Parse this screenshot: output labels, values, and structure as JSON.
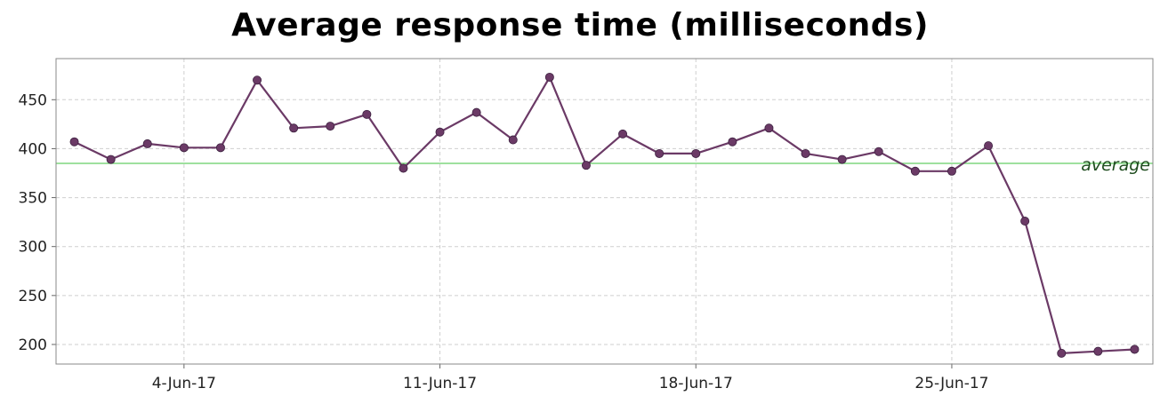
{
  "chart_data": {
    "type": "line",
    "title": "Average response time (milliseconds)",
    "xlabel": "",
    "ylabel": "",
    "x": [
      "1-Jun-17",
      "2-Jun-17",
      "3-Jun-17",
      "4-Jun-17",
      "5-Jun-17",
      "6-Jun-17",
      "7-Jun-17",
      "8-Jun-17",
      "9-Jun-17",
      "10-Jun-17",
      "11-Jun-17",
      "12-Jun-17",
      "13-Jun-17",
      "14-Jun-17",
      "15-Jun-17",
      "16-Jun-17",
      "17-Jun-17",
      "18-Jun-17",
      "19-Jun-17",
      "20-Jun-17",
      "21-Jun-17",
      "22-Jun-17",
      "23-Jun-17",
      "24-Jun-17",
      "25-Jun-17",
      "26-Jun-17",
      "27-Jun-17",
      "28-Jun-17",
      "29-Jun-17",
      "30-Jun-17"
    ],
    "series": [
      {
        "name": "",
        "values": [
          407,
          389,
          405,
          401,
          401,
          470,
          421,
          423,
          435,
          380,
          417,
          437,
          409,
          473,
          383,
          415,
          395,
          395,
          407,
          421,
          395,
          389,
          397,
          377,
          377,
          403,
          326,
          191,
          193,
          195
        ],
        "color": "#6b3a66"
      }
    ],
    "reference_lines": [
      {
        "label": "average",
        "value": 385,
        "color": "#7fd77f"
      }
    ],
    "xticks": [
      "4-Jun-17",
      "11-Jun-17",
      "18-Jun-17",
      "25-Jun-17"
    ],
    "yticks": [
      200,
      250,
      300,
      350,
      400,
      450
    ],
    "ylim": [
      180,
      492
    ],
    "xlim": [
      "31-May-17 12:00",
      "30-Jun-17 12:00"
    ],
    "grid": true,
    "legend": "none"
  }
}
